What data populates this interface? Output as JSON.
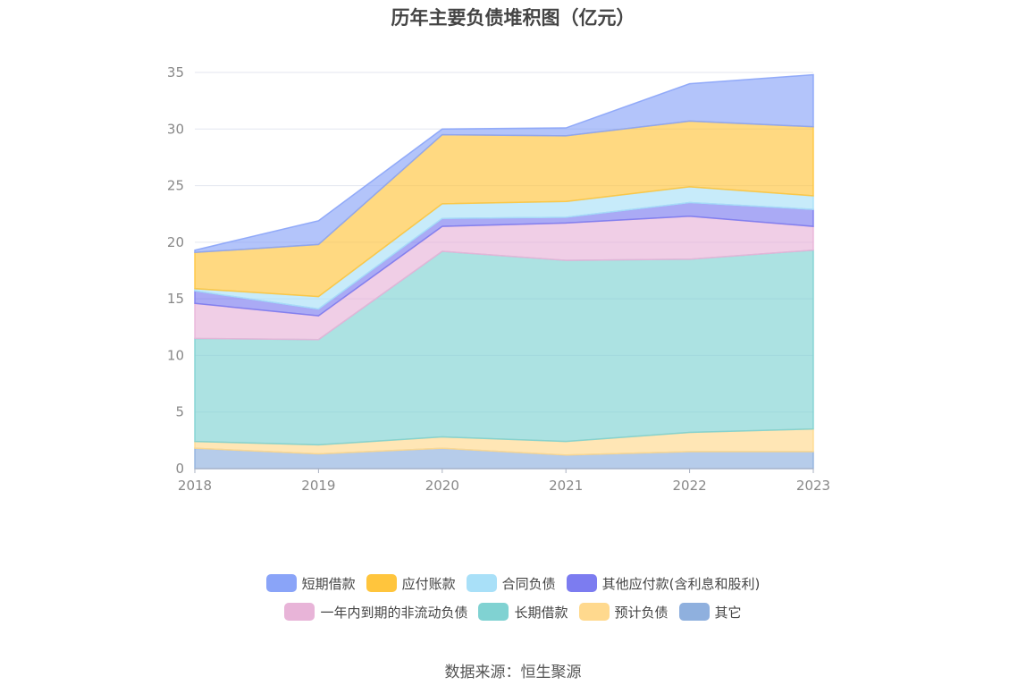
{
  "chart_data": {
    "type": "area",
    "stacked": true,
    "title": "历年主要负债堆积图（亿元）",
    "x": [
      "2018",
      "2019",
      "2020",
      "2021",
      "2022",
      "2023"
    ],
    "ylim": [
      0,
      35
    ],
    "yticks": [
      "0",
      "5",
      "10",
      "15",
      "20",
      "25",
      "30",
      "35"
    ],
    "grid": true,
    "legend_position": "bottom",
    "series": [
      {
        "name": "其它",
        "color": "#8fb0de",
        "values": [
          1.8,
          1.3,
          1.8,
          1.2,
          1.5,
          1.5
        ]
      },
      {
        "name": "预计负债",
        "color": "#ffd98e",
        "values": [
          0.6,
          0.8,
          1.0,
          1.2,
          1.7,
          2.0
        ]
      },
      {
        "name": "长期借款",
        "color": "#80d2d2",
        "values": [
          9.1,
          9.3,
          16.4,
          16.0,
          15.3,
          15.8
        ]
      },
      {
        "name": "一年内到期的非流动负债",
        "color": "#e8b4d8",
        "values": [
          3.1,
          2.1,
          2.2,
          3.3,
          3.8,
          2.1
        ]
      },
      {
        "name": "其他应付款(含利息和股利)",
        "color": "#7c7cf0",
        "values": [
          1.1,
          0.6,
          0.7,
          0.5,
          1.2,
          1.5
        ]
      },
      {
        "name": "合同负债",
        "color": "#a9e0f8",
        "values": [
          0.2,
          1.1,
          1.3,
          1.4,
          1.4,
          1.2
        ]
      },
      {
        "name": "应付账款",
        "color": "#ffc53d",
        "values": [
          3.2,
          4.6,
          6.1,
          5.8,
          5.8,
          6.1
        ]
      },
      {
        "name": "短期借款",
        "color": "#8aa4f8",
        "values": [
          0.2,
          2.1,
          0.5,
          0.7,
          3.3,
          4.6
        ]
      }
    ],
    "legend_order": [
      [
        "短期借款",
        "应付账款",
        "合同负债",
        "其他应付款(含利息和股利)"
      ],
      [
        "一年内到期的非流动负债",
        "长期借款",
        "预计负债",
        "其它"
      ]
    ]
  },
  "source": "数据来源：恒生聚源"
}
